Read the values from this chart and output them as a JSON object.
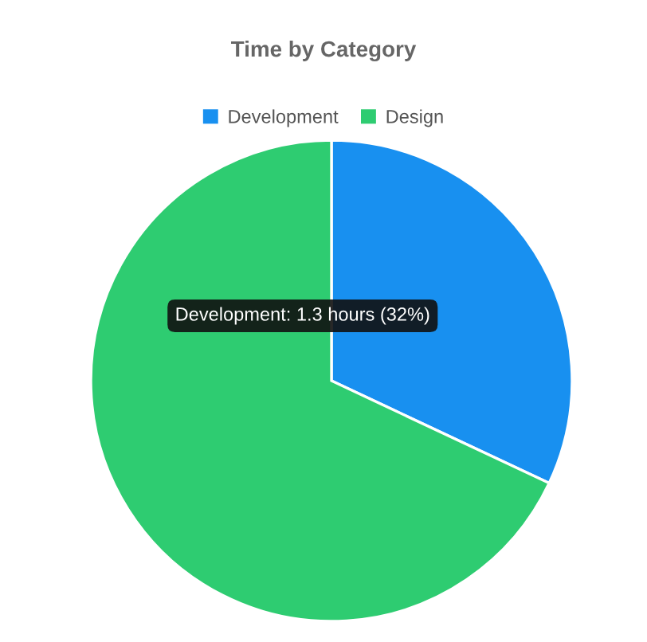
{
  "chart_data": {
    "type": "pie",
    "title": "Time by Category",
    "categories": [
      "Development",
      "Design"
    ],
    "values": [
      32,
      68
    ],
    "colors": [
      "#1890f0",
      "#2ecc71"
    ],
    "legend": "top",
    "annotations": [
      "Development: 1.3 hours (32%)"
    ]
  }
}
